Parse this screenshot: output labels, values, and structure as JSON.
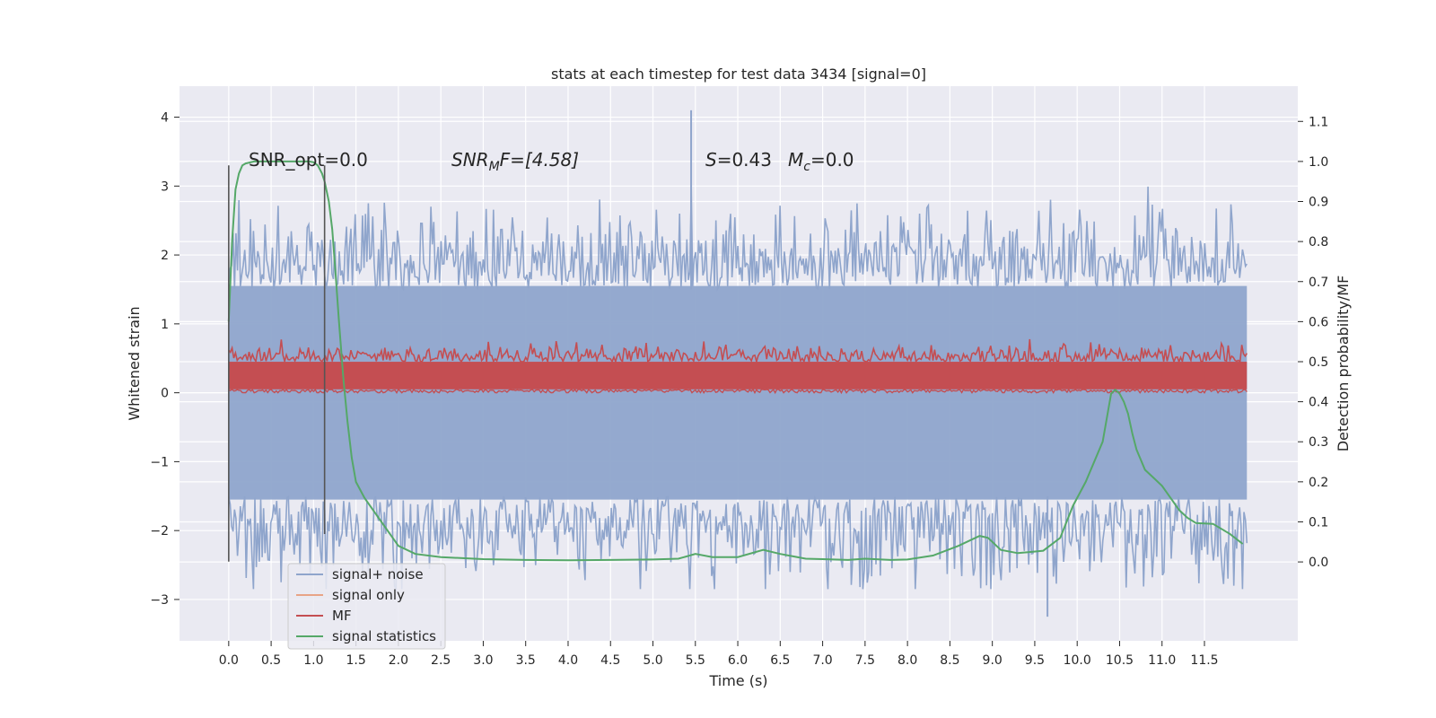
{
  "chart_data": {
    "type": "line",
    "title": "stats at each timestep for test data 3434 [signal=0]",
    "xlabel": "Time (s)",
    "ylabel_left": "Whitened strain",
    "ylabel_right": "Detection probability/MF",
    "xlim": [
      -0.58,
      12.6
    ],
    "ylim_left": [
      -3.6,
      4.45
    ],
    "ylim_right": [
      -0.197,
      1.188
    ],
    "x_ticks": [
      "0.0",
      "0.5",
      "1.0",
      "1.5",
      "2.0",
      "2.5",
      "3.0",
      "3.5",
      "4.0",
      "4.5",
      "5.0",
      "5.5",
      "6.0",
      "6.5",
      "7.0",
      "7.5",
      "8.0",
      "8.5",
      "9.0",
      "9.5",
      "10.0",
      "10.5",
      "11.0",
      "11.5"
    ],
    "y_ticks_left": [
      "−3",
      "−2",
      "−1",
      "0",
      "1",
      "2",
      "3",
      "4"
    ],
    "y_ticks_right": [
      "0.0",
      "0.1",
      "0.2",
      "0.3",
      "0.4",
      "0.5",
      "0.6",
      "0.7",
      "0.8",
      "0.9",
      "1.0",
      "1.1"
    ],
    "grid": true,
    "legend_position": "lower-left",
    "annotations": {
      "snr_opt": "SNR_opt=0.0",
      "snr_mf_base": "SNR",
      "snr_mf_sub": "M",
      "snr_mf_rest": "F=[4.58]",
      "s_var": "S",
      "s_rest": "=0.43",
      "mc_var": "M",
      "mc_sub": "c",
      "mc_rest": "=0.0"
    },
    "vertical_markers": [
      {
        "x": 0.0,
        "y_range": [
          -2.45,
          3.3
        ]
      },
      {
        "x": 1.13,
        "y_range": [
          -2.05,
          3.3
        ]
      }
    ],
    "series": [
      {
        "name": "signal+ noise",
        "color": "#8fa5cc",
        "kind": "noise",
        "x_range": [
          0.0,
          12.0
        ],
        "envelope_left": [
          -1.55,
          1.55
        ],
        "extremes_left": [
          -3.25,
          4.1
        ]
      },
      {
        "name": "signal only",
        "color": "#e8a487"
      },
      {
        "name": "MF",
        "color": "#c44e52",
        "kind": "band",
        "x_range": [
          0.0,
          12.0
        ],
        "band_left": [
          0.05,
          0.45
        ],
        "extremes_left": [
          0.0,
          1.0
        ]
      },
      {
        "name": "signal statistics",
        "color": "#55a868",
        "axis": "right",
        "x": [
          0.0,
          0.04,
          0.08,
          0.12,
          0.16,
          0.2,
          0.3,
          0.5,
          0.8,
          0.95,
          1.0,
          1.05,
          1.1,
          1.13,
          1.18,
          1.22,
          1.26,
          1.3,
          1.35,
          1.4,
          1.45,
          1.5,
          1.6,
          1.7,
          1.8,
          1.9,
          2.0,
          2.2,
          2.5,
          3.0,
          3.5,
          4.0,
          4.5,
          5.0,
          5.3,
          5.5,
          5.7,
          6.0,
          6.3,
          6.5,
          6.8,
          7.0,
          7.3,
          7.5,
          7.8,
          8.0,
          8.3,
          8.6,
          8.85,
          8.95,
          9.1,
          9.3,
          9.6,
          9.8,
          9.95,
          10.1,
          10.3,
          10.4,
          10.45,
          10.5,
          10.55,
          10.6,
          10.65,
          10.7,
          10.8,
          10.9,
          11.0,
          11.1,
          11.2,
          11.3,
          11.4,
          11.6,
          11.8,
          11.95
        ],
        "y": [
          0.6,
          0.8,
          0.93,
          0.97,
          0.99,
          0.995,
          1.0,
          1.0,
          1.0,
          1.0,
          0.998,
          0.99,
          0.97,
          0.95,
          0.9,
          0.83,
          0.72,
          0.6,
          0.46,
          0.35,
          0.26,
          0.2,
          0.16,
          0.13,
          0.1,
          0.07,
          0.04,
          0.02,
          0.012,
          0.007,
          0.005,
          0.004,
          0.005,
          0.006,
          0.008,
          0.02,
          0.012,
          0.012,
          0.03,
          0.02,
          0.008,
          0.007,
          0.005,
          0.008,
          0.005,
          0.006,
          0.016,
          0.04,
          0.065,
          0.06,
          0.03,
          0.022,
          0.028,
          0.06,
          0.14,
          0.2,
          0.3,
          0.42,
          0.43,
          0.42,
          0.4,
          0.37,
          0.32,
          0.28,
          0.23,
          0.21,
          0.19,
          0.16,
          0.13,
          0.11,
          0.097,
          0.095,
          0.07,
          0.045
        ]
      }
    ]
  }
}
